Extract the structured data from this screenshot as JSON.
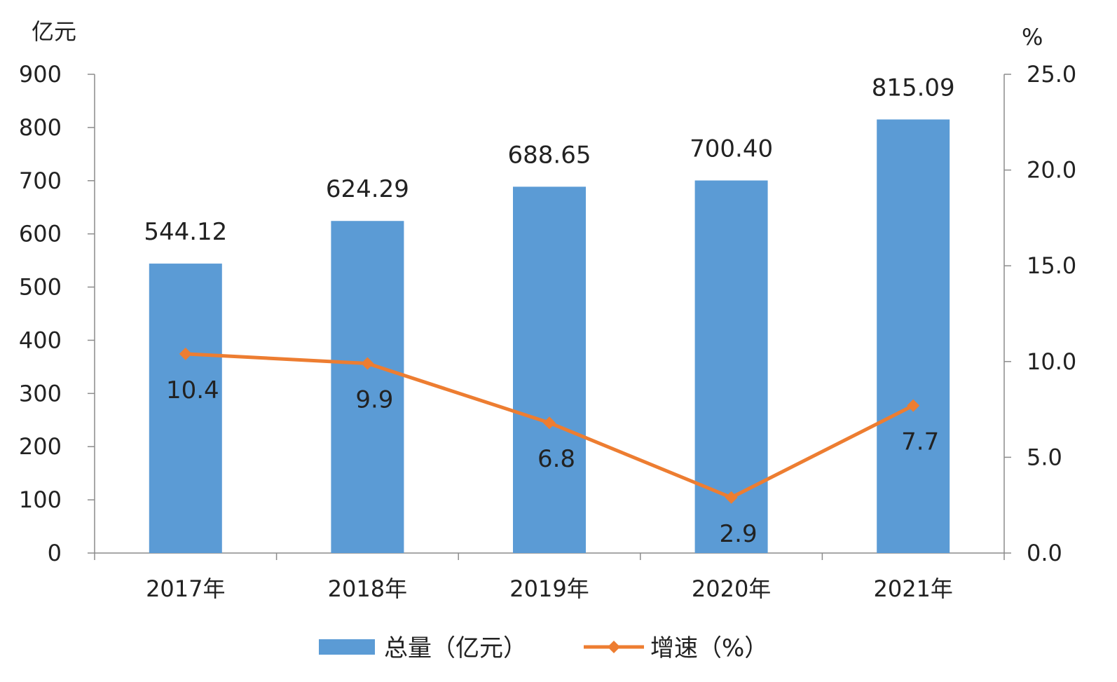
{
  "chart_data": {
    "type": "bar",
    "categories": [
      "2017年",
      "2018年",
      "2019年",
      "2020年",
      "2021年"
    ],
    "series": [
      {
        "name": "总量（亿元）",
        "type": "bar",
        "axis": "left",
        "color": "#5b9bd5",
        "values": [
          544.12,
          624.29,
          688.65,
          700.4,
          815.09
        ],
        "labels": [
          "544.12",
          "624.29",
          "688.65",
          "700.40",
          "815.09"
        ]
      },
      {
        "name": "增速（%）",
        "type": "line",
        "axis": "right",
        "marker": "diamond",
        "color": "#ed7d31",
        "values": [
          10.4,
          9.9,
          6.8,
          2.9,
          7.7
        ],
        "labels": [
          "10.4",
          "9.9",
          "6.8",
          "2.9",
          "7.7"
        ]
      }
    ],
    "y_left": {
      "unit": "亿元",
      "range": [
        0,
        900
      ],
      "ticks": [
        "0",
        "100",
        "200",
        "300",
        "400",
        "500",
        "600",
        "700",
        "800",
        "900"
      ]
    },
    "y_right": {
      "unit": "%",
      "range": [
        0,
        25
      ],
      "ticks": [
        "0.0",
        "5.0",
        "10.0",
        "15.0",
        "20.0",
        "25.0"
      ]
    },
    "grid": false,
    "legend": "bottom"
  }
}
